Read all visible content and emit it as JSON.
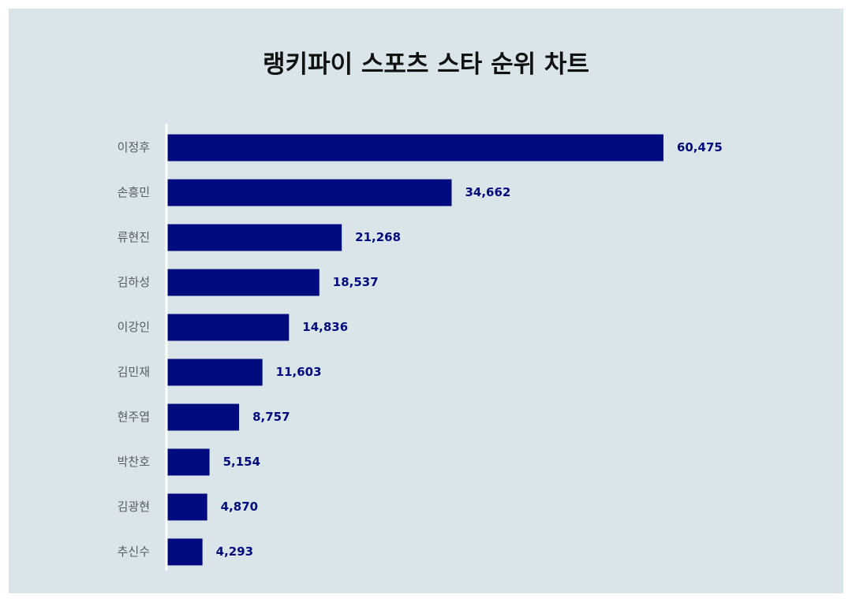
{
  "colors": {
    "background": "#dae5ea",
    "bar": "#000b80",
    "value_label": "#000b80",
    "axis": "#ffffff"
  },
  "chart_data": {
    "type": "bar",
    "orientation": "horizontal",
    "title": "랭키파이 스포츠 스타 순위 차트",
    "xlabel": "",
    "ylabel": "",
    "categories": [
      "이정후",
      "손흥민",
      "류현진",
      "김하성",
      "이강인",
      "김민재",
      "현주엽",
      "박찬호",
      "김광현",
      "추신수"
    ],
    "values": [
      60475,
      34662,
      21268,
      18537,
      14836,
      11603,
      8757,
      5154,
      4870,
      4293
    ],
    "value_labels": [
      "60,475",
      "34,662",
      "21,268",
      "18,537",
      "14,836",
      "11,603",
      "8,757",
      "5,154",
      "4,870",
      "4,293"
    ],
    "xlim": [
      0,
      70000
    ],
    "grid": false,
    "legend": "none"
  }
}
